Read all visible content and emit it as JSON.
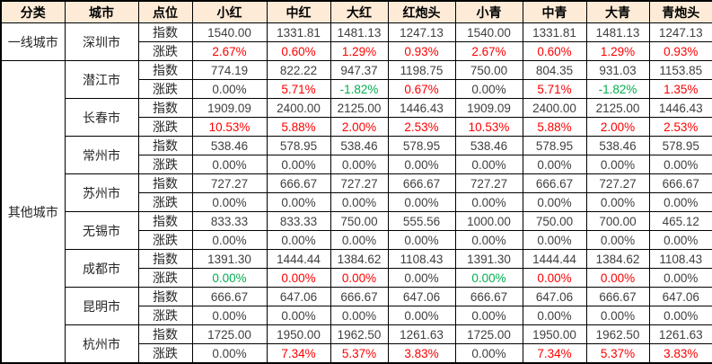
{
  "colors": {
    "red": "#FE0000",
    "green": "#00B050",
    "black": "#404040",
    "header_bg": "#FDEBD7",
    "border": "#000000"
  },
  "table": {
    "headers": [
      "分类",
      "城市",
      "点位",
      "小红",
      "中红",
      "大红",
      "红炮头",
      "小青",
      "中青",
      "大青",
      "青炮头"
    ],
    "row_labels": {
      "index": "指数",
      "change": "涨跌"
    },
    "categories": [
      {
        "label": "一线城市",
        "row_span": 2
      },
      {
        "label": "其他城市",
        "row_span": 16
      }
    ],
    "cities": [
      {
        "name": "深圳市",
        "category": 0,
        "index": [
          "1540.00",
          "1331.81",
          "1481.13",
          "1247.13",
          "1540.00",
          "1331.81",
          "1481.13",
          "1247.13"
        ],
        "change": [
          "2.67%",
          "0.60%",
          "1.29%",
          "0.93%",
          "2.67%",
          "0.60%",
          "1.29%",
          "0.93%"
        ],
        "change_colors": [
          "red",
          "red",
          "red",
          "red",
          "red",
          "red",
          "red",
          "red"
        ]
      },
      {
        "name": "潜江市",
        "category": 1,
        "index": [
          "774.19",
          "822.22",
          "947.37",
          "1198.75",
          "750.00",
          "804.35",
          "931.03",
          "1153.85"
        ],
        "change": [
          "0.00%",
          "5.71%",
          "-1.82%",
          "0.67%",
          "0.00%",
          "5.71%",
          "-1.82%",
          "1.35%"
        ],
        "change_colors": [
          "black",
          "red",
          "green",
          "red",
          "black",
          "red",
          "green",
          "red"
        ]
      },
      {
        "name": "长春市",
        "category": 1,
        "index": [
          "1909.09",
          "2400.00",
          "2125.00",
          "1446.43",
          "1909.09",
          "2400.00",
          "2125.00",
          "1446.43"
        ],
        "change": [
          "10.53%",
          "5.88%",
          "2.00%",
          "2.53%",
          "10.53%",
          "5.88%",
          "2.00%",
          "2.53%"
        ],
        "change_colors": [
          "red",
          "red",
          "red",
          "red",
          "red",
          "red",
          "red",
          "red"
        ]
      },
      {
        "name": "常州市",
        "category": 1,
        "index": [
          "538.46",
          "578.95",
          "538.46",
          "578.95",
          "538.46",
          "578.95",
          "538.46",
          "578.95"
        ],
        "change": [
          "0.00%",
          "0.00%",
          "0.00%",
          "0.00%",
          "0.00%",
          "0.00%",
          "0.00%",
          "0.00%"
        ],
        "change_colors": [
          "black",
          "black",
          "black",
          "black",
          "black",
          "black",
          "black",
          "black"
        ]
      },
      {
        "name": "苏州市",
        "category": 1,
        "index": [
          "727.27",
          "666.67",
          "727.27",
          "666.67",
          "727.27",
          "666.67",
          "727.27",
          "666.67"
        ],
        "change": [
          "0.00%",
          "0.00%",
          "0.00%",
          "0.00%",
          "0.00%",
          "0.00%",
          "0.00%",
          "0.00%"
        ],
        "change_colors": [
          "black",
          "black",
          "black",
          "black",
          "black",
          "black",
          "black",
          "black"
        ]
      },
      {
        "name": "无锡市",
        "category": 1,
        "index": [
          "833.33",
          "833.33",
          "750.00",
          "555.56",
          "1000.00",
          "750.00",
          "700.00",
          "465.12"
        ],
        "change": [
          "0.00%",
          "0.00%",
          "0.00%",
          "0.00%",
          "0.00%",
          "0.00%",
          "0.00%",
          "0.00%"
        ],
        "change_colors": [
          "black",
          "black",
          "black",
          "black",
          "black",
          "black",
          "black",
          "black"
        ]
      },
      {
        "name": "成都市",
        "category": 1,
        "index": [
          "1391.30",
          "1444.44",
          "1384.62",
          "1108.43",
          "1391.30",
          "1444.44",
          "1384.62",
          "1108.43"
        ],
        "change": [
          "0.00%",
          "0.00%",
          "0.00%",
          "0.00%",
          "0.00%",
          "0.00%",
          "0.00%",
          "0.00%"
        ],
        "change_colors": [
          "green",
          "red",
          "red",
          "black",
          "green",
          "red",
          "red",
          "black"
        ]
      },
      {
        "name": "昆明市",
        "category": 1,
        "index": [
          "666.67",
          "647.06",
          "666.67",
          "647.06",
          "666.67",
          "647.06",
          "666.67",
          "647.06"
        ],
        "change": [
          "0.00%",
          "0.00%",
          "0.00%",
          "0.00%",
          "0.00%",
          "0.00%",
          "0.00%",
          "0.00%"
        ],
        "change_colors": [
          "black",
          "black",
          "black",
          "black",
          "black",
          "black",
          "black",
          "black"
        ]
      },
      {
        "name": "杭州市",
        "category": 1,
        "index": [
          "1725.00",
          "1950.00",
          "1962.50",
          "1261.63",
          "1725.00",
          "1950.00",
          "1962.50",
          "1261.63"
        ],
        "change": [
          "0.00%",
          "7.34%",
          "5.37%",
          "3.83%",
          "0.00%",
          "7.34%",
          "5.37%",
          "3.83%"
        ],
        "change_colors": [
          "black",
          "red",
          "red",
          "red",
          "black",
          "red",
          "red",
          "red"
        ]
      }
    ]
  }
}
